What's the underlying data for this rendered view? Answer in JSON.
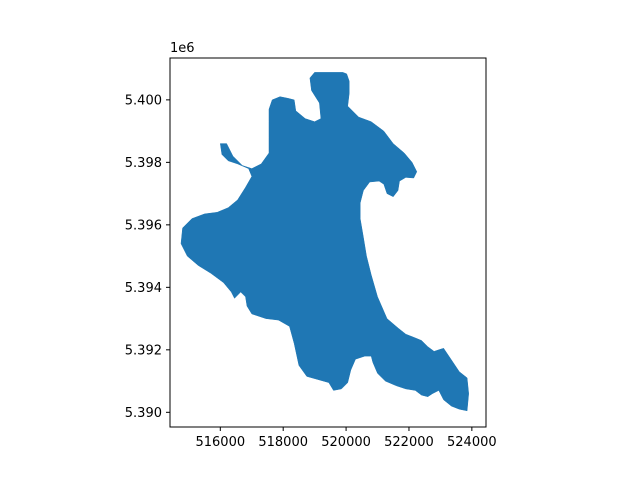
{
  "chart_data": {
    "type": "map",
    "title": "",
    "xlabel": "",
    "ylabel": "",
    "xlim": [
      514400,
      524450
    ],
    "ylim": [
      5389530,
      5401340
    ],
    "x_ticks": [
      {
        "value": 516000,
        "label": "516000"
      },
      {
        "value": 518000,
        "label": "518000"
      },
      {
        "value": 520000,
        "label": "520000"
      },
      {
        "value": 522000,
        "label": "522000"
      },
      {
        "value": 524000,
        "label": "524000"
      }
    ],
    "y_ticks": [
      {
        "value": 5390000,
        "label": "5.390"
      },
      {
        "value": 5392000,
        "label": "5.392"
      },
      {
        "value": 5394000,
        "label": "5.394"
      },
      {
        "value": 5396000,
        "label": "5.396"
      },
      {
        "value": 5398000,
        "label": "5.398"
      },
      {
        "value": 5400000,
        "label": "5.400"
      }
    ],
    "y_offset_label": "1e6",
    "grid": false,
    "series": [
      {
        "fill_color": "#1f77b4",
        "polygon": [
          [
            519000,
            5400880
          ],
          [
            519900,
            5400880
          ],
          [
            520020,
            5400830
          ],
          [
            520100,
            5400600
          ],
          [
            520100,
            5400200
          ],
          [
            520050,
            5399800
          ],
          [
            520400,
            5399450
          ],
          [
            520800,
            5399300
          ],
          [
            521200,
            5399000
          ],
          [
            521500,
            5398600
          ],
          [
            521850,
            5398300
          ],
          [
            522100,
            5398000
          ],
          [
            522250,
            5397700
          ],
          [
            522150,
            5397500
          ],
          [
            521900,
            5397520
          ],
          [
            521700,
            5397400
          ],
          [
            521650,
            5397100
          ],
          [
            521500,
            5396900
          ],
          [
            521300,
            5397000
          ],
          [
            521200,
            5397300
          ],
          [
            521050,
            5397400
          ],
          [
            520750,
            5397370
          ],
          [
            520550,
            5397100
          ],
          [
            520450,
            5396700
          ],
          [
            520450,
            5396200
          ],
          [
            520550,
            5395600
          ],
          [
            520650,
            5395000
          ],
          [
            520800,
            5394400
          ],
          [
            521000,
            5393700
          ],
          [
            521300,
            5393000
          ],
          [
            521650,
            5392700
          ],
          [
            521900,
            5392500
          ],
          [
            522150,
            5392400
          ],
          [
            522400,
            5392300
          ],
          [
            522600,
            5392100
          ],
          [
            522800,
            5391950
          ],
          [
            522950,
            5392000
          ],
          [
            523100,
            5392050
          ],
          [
            523400,
            5391600
          ],
          [
            523600,
            5391300
          ],
          [
            523850,
            5391100
          ],
          [
            523900,
            5390600
          ],
          [
            523850,
            5390050
          ],
          [
            523600,
            5390100
          ],
          [
            523350,
            5390200
          ],
          [
            523100,
            5390400
          ],
          [
            522950,
            5390700
          ],
          [
            522750,
            5390600
          ],
          [
            522600,
            5390500
          ],
          [
            522400,
            5390550
          ],
          [
            522200,
            5390700
          ],
          [
            521900,
            5390750
          ],
          [
            521600,
            5390850
          ],
          [
            521250,
            5391000
          ],
          [
            521000,
            5391250
          ],
          [
            520850,
            5391600
          ],
          [
            520800,
            5391800
          ],
          [
            520600,
            5391800
          ],
          [
            520300,
            5391700
          ],
          [
            520150,
            5391350
          ],
          [
            520050,
            5390950
          ],
          [
            519850,
            5390750
          ],
          [
            519600,
            5390700
          ],
          [
            519450,
            5390950
          ],
          [
            519100,
            5391050
          ],
          [
            518750,
            5391150
          ],
          [
            518500,
            5391500
          ],
          [
            518350,
            5392200
          ],
          [
            518200,
            5392750
          ],
          [
            517850,
            5392950
          ],
          [
            517450,
            5393000
          ],
          [
            517000,
            5393150
          ],
          [
            516850,
            5393400
          ],
          [
            516800,
            5393700
          ],
          [
            516650,
            5393850
          ],
          [
            516450,
            5393650
          ],
          [
            516350,
            5393850
          ],
          [
            516100,
            5394150
          ],
          [
            515700,
            5394450
          ],
          [
            515300,
            5394700
          ],
          [
            514950,
            5395000
          ],
          [
            514750,
            5395400
          ],
          [
            514800,
            5395900
          ],
          [
            515100,
            5396200
          ],
          [
            515500,
            5396350
          ],
          [
            515900,
            5396400
          ],
          [
            516250,
            5396550
          ],
          [
            516550,
            5396800
          ],
          [
            516800,
            5397200
          ],
          [
            517000,
            5397550
          ],
          [
            516900,
            5397800
          ],
          [
            516550,
            5397950
          ],
          [
            516250,
            5398050
          ],
          [
            516050,
            5398250
          ],
          [
            516000,
            5398600
          ],
          [
            516200,
            5398600
          ],
          [
            516400,
            5398200
          ],
          [
            516700,
            5397900
          ],
          [
            517000,
            5397800
          ],
          [
            517300,
            5397950
          ],
          [
            517550,
            5398300
          ],
          [
            517550,
            5398800
          ],
          [
            517550,
            5399300
          ],
          [
            517550,
            5399700
          ],
          [
            517650,
            5400000
          ],
          [
            517900,
            5400100
          ],
          [
            518150,
            5400050
          ],
          [
            518350,
            5400000
          ],
          [
            518400,
            5399650
          ],
          [
            518700,
            5399400
          ],
          [
            519000,
            5399300
          ],
          [
            519200,
            5399400
          ],
          [
            519150,
            5399900
          ],
          [
            518900,
            5400300
          ],
          [
            518850,
            5400700
          ]
        ]
      }
    ]
  }
}
